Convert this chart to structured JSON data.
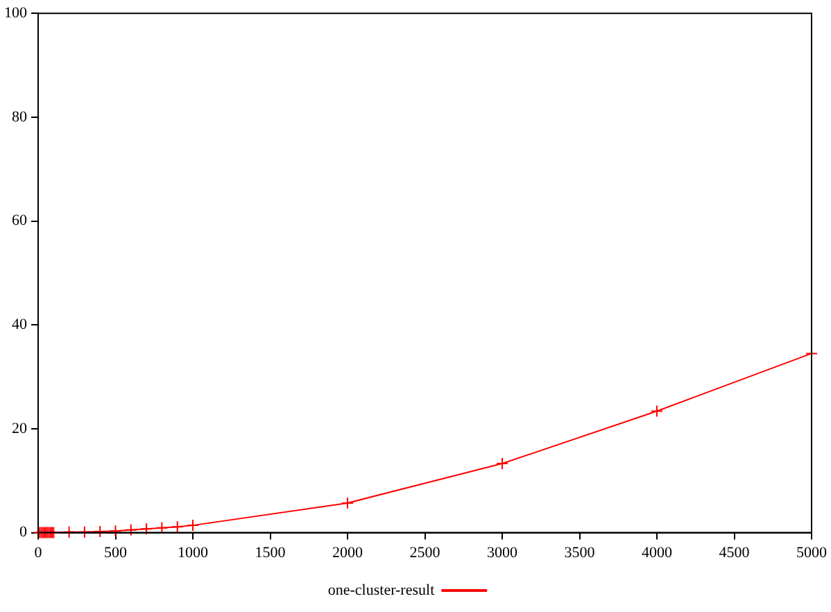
{
  "chart_data": {
    "type": "line",
    "x": [
      10,
      20,
      30,
      40,
      50,
      60,
      70,
      80,
      90,
      100,
      200,
      300,
      400,
      500,
      600,
      700,
      800,
      900,
      1000,
      2000,
      3000,
      4000,
      5000
    ],
    "series": [
      {
        "name": "one-cluster-result",
        "color": "#ff0000",
        "values": [
          0,
          0,
          0,
          0,
          0,
          0,
          0,
          0,
          0,
          0,
          0.1,
          0.1,
          0.2,
          0.3,
          0.5,
          0.7,
          0.9,
          1.1,
          1.4,
          5.7,
          13.3,
          23.4,
          34.5
        ]
      }
    ],
    "xlim": [
      0,
      5000
    ],
    "xticks": [
      0,
      500,
      1000,
      1500,
      2000,
      2500,
      3000,
      3500,
      4000,
      4500,
      5000
    ],
    "ylim": [
      0,
      100
    ],
    "yticks": [
      0,
      20,
      40,
      60,
      80,
      100
    ],
    "grid": false,
    "legend": "bottom",
    "marker": "cross",
    "line_style": "solid"
  }
}
